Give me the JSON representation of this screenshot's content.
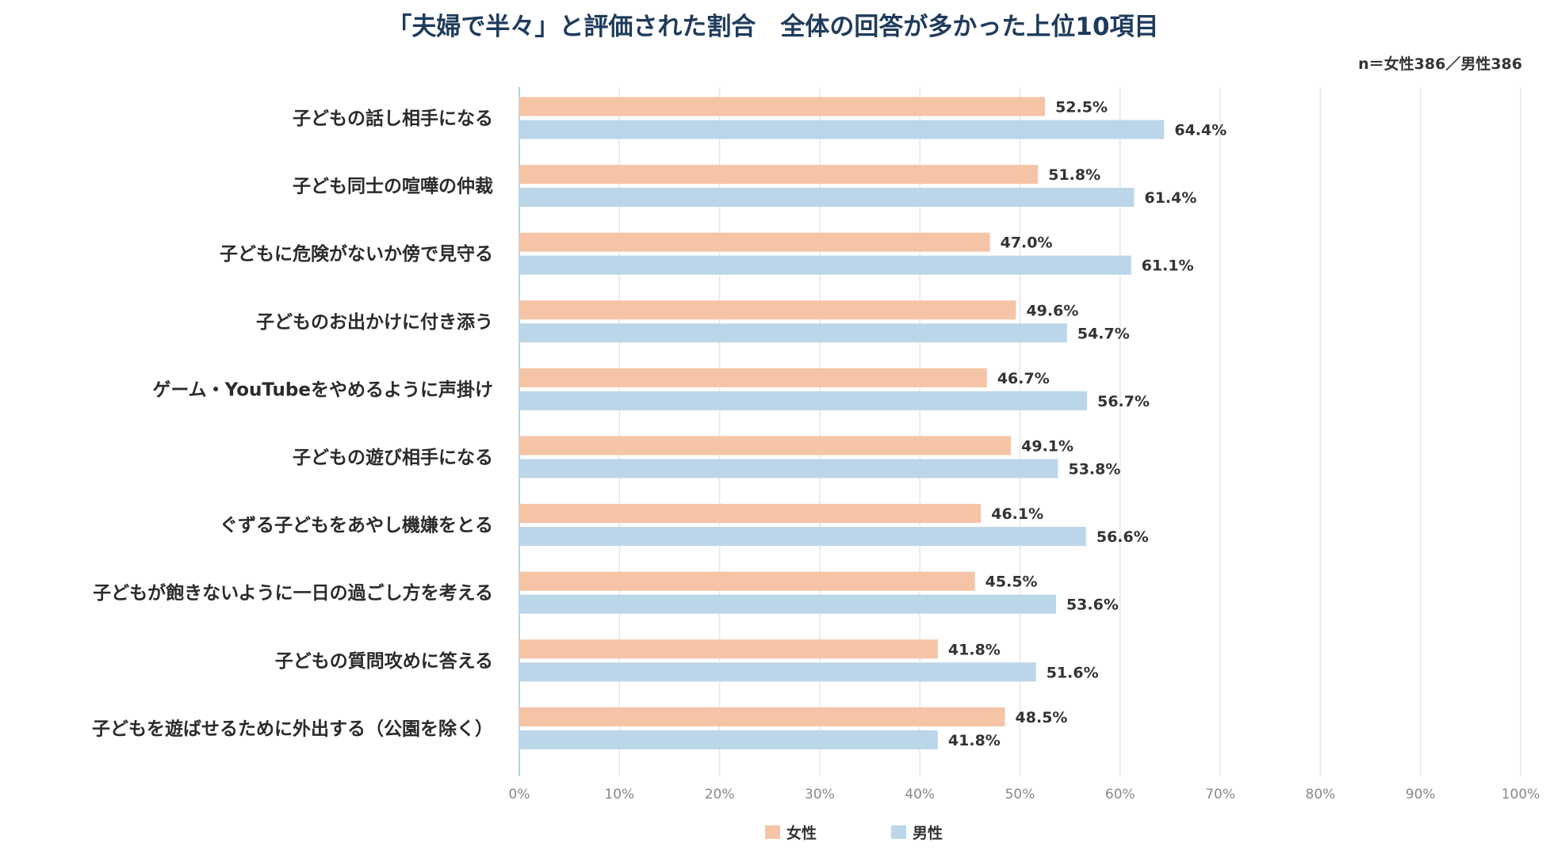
{
  "title": "「夫婦で半々」と評価された割合　全体の回答が多かった上位10項目",
  "note": "n＝女性386／男性386",
  "colors": {
    "female": "#f5c4a6",
    "male": "#bcd6e9",
    "grid": "#e6e6e6",
    "axis": "#bcd0e0"
  },
  "chart_data": {
    "type": "bar",
    "orientation": "horizontal",
    "title": "「夫婦で半々」と評価された割合　全体の回答が多かった上位10項目",
    "categories": [
      "子どもの話し相手になる",
      "子ども同士の喧嘩の仲裁",
      "子どもに危険がないか傍で見守る",
      "子どものお出かけに付き添う",
      "ゲーム・YouTubeをやめるように声掛け",
      "子どもの遊び相手になる",
      "ぐずる子どもをあやし機嫌をとる",
      "子どもが飽きないように一日の過ごし方を考える",
      "子どもの質問攻めに答える",
      "子どもを遊ばせるために外出する（公園を除く）"
    ],
    "series": [
      {
        "name": "女性",
        "values": [
          52.5,
          51.8,
          47.0,
          49.6,
          46.7,
          49.1,
          46.1,
          45.5,
          41.8,
          48.5
        ],
        "labels": [
          "52.5%",
          "51.8%",
          "47.0%",
          "49.6%",
          "46.7%",
          "49.1%",
          "46.1%",
          "45.5%",
          "41.8%",
          "48.5%"
        ]
      },
      {
        "name": "男性",
        "values": [
          64.4,
          61.4,
          61.1,
          54.7,
          56.7,
          53.8,
          56.6,
          53.6,
          51.6,
          41.8
        ],
        "labels": [
          "64.4%",
          "61.4%",
          "61.1%",
          "54.7%",
          "56.7%",
          "53.8%",
          "56.6%",
          "53.6%",
          "51.6%",
          "41.8%"
        ]
      }
    ],
    "xlim": [
      0,
      100
    ],
    "xticks": [
      "0%",
      "10%",
      "20%",
      "30%",
      "40%",
      "50%",
      "60%",
      "70%",
      "80%",
      "90%",
      "100%"
    ],
    "grid": true,
    "legend": "bottom-center"
  }
}
